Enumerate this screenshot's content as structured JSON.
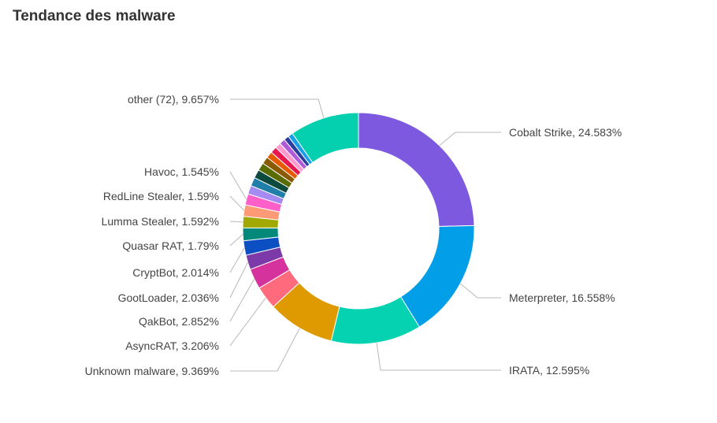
{
  "title": "Tendance des malware",
  "chart_data": {
    "type": "pie",
    "donut": true,
    "slices": [
      {
        "label": "Cobalt Strike, 24.583%",
        "value": 24.583,
        "color": "#7c59de",
        "labeled": true
      },
      {
        "label": "Meterpreter, 16.558%",
        "value": 16.558,
        "color": "#029ee8",
        "labeled": true
      },
      {
        "label": "IRATA, 12.595%",
        "value": 12.595,
        "color": "#04d2b0",
        "labeled": true
      },
      {
        "label": "Unknown malware, 9.369%",
        "value": 9.369,
        "color": "#de9a00",
        "labeled": true
      },
      {
        "label": "AsyncRAT, 3.206%",
        "value": 3.206,
        "color": "#ff6b7d",
        "labeled": true
      },
      {
        "label": "QakBot, 2.852%",
        "value": 2.852,
        "color": "#d6329e",
        "labeled": true
      },
      {
        "label": "GootLoader, 2.036%",
        "value": 2.036,
        "color": "#7c3aa8",
        "labeled": true
      },
      {
        "label": "CryptBot, 2.014%",
        "value": 2.014,
        "color": "#0b4fc2",
        "labeled": true
      },
      {
        "label": "Quasar RAT, 1.79%",
        "value": 1.79,
        "color": "#02897c",
        "labeled": true
      },
      {
        "label": "Lumma Stealer, 1.592%",
        "value": 1.592,
        "color": "#a1a800",
        "labeled": true
      },
      {
        "label": "RedLine Stealer, 1.59%",
        "value": 1.59,
        "color": "#ff9a76",
        "labeled": true
      },
      {
        "label": "Havoc, 1.545%",
        "value": 1.545,
        "color": "#ff5fc8",
        "labeled": true
      },
      {
        "label": "",
        "value": 1.2,
        "color": "#a58af2",
        "labeled": false
      },
      {
        "label": "",
        "value": 1.2,
        "color": "#1f7fa8",
        "labeled": false
      },
      {
        "label": "",
        "value": 1.2,
        "color": "#0d4a3e",
        "labeled": false
      },
      {
        "label": "",
        "value": 1.1,
        "color": "#5a6b00",
        "labeled": false
      },
      {
        "label": "",
        "value": 1.0,
        "color": "#8a5a00",
        "labeled": false
      },
      {
        "label": "",
        "value": 0.9,
        "color": "#e85a00",
        "labeled": false
      },
      {
        "label": "",
        "value": 0.9,
        "color": "#e8174f",
        "labeled": false
      },
      {
        "label": "",
        "value": 0.8,
        "color": "#ff9bd0",
        "labeled": false
      },
      {
        "label": "",
        "value": 0.8,
        "color": "#b05ad8",
        "labeled": false
      },
      {
        "label": "",
        "value": 0.7,
        "color": "#2c3e9e",
        "labeled": false
      },
      {
        "label": "",
        "value": 0.7,
        "color": "#1aa0e8",
        "labeled": false
      },
      {
        "label": "other (72), 9.657%",
        "value": 9.657,
        "color": "#04cfaf",
        "labeled": true
      }
    ]
  }
}
